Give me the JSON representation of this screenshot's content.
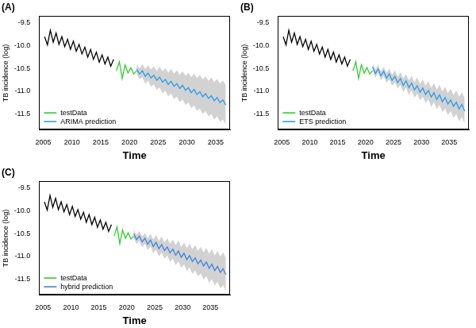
{
  "chart_data": [
    {
      "type": "line",
      "title": "(A)",
      "x_label": "Time",
      "y_label": "TB incidence (log)",
      "xlim": [
        2004.3,
        2037.5
      ],
      "xticks": [
        2005,
        2010,
        2015,
        2020,
        2025,
        2030,
        2035
      ],
      "ylim": [
        -11.85,
        -9.35
      ],
      "yticks": [
        -9.5,
        {
          "value": -10,
          "label": "-10.0"
        },
        -10.5,
        {
          "value": -11,
          "label": "-11.0"
        },
        -11.5
      ],
      "grid": false,
      "legend": "lower left",
      "series": [
        {
          "color": "#000000",
          "x": [
            2005.25,
            2005.75,
            2006.25,
            2006.75,
            2007.25,
            2007.75,
            2008.25,
            2008.75,
            2009.25,
            2009.75,
            2010.25,
            2010.75,
            2011.25,
            2011.75,
            2012.25,
            2012.75,
            2013.25,
            2013.75,
            2014.25,
            2014.75,
            2015.25,
            2015.75,
            2016.25,
            2016.75,
            2017.25
          ],
          "values": [
            -9.8,
            -9.98,
            -9.66,
            -9.92,
            -9.72,
            -9.97,
            -9.8,
            -10.02,
            -9.86,
            -10.08,
            -9.9,
            -10.12,
            -9.97,
            -10.18,
            -10.03,
            -10.25,
            -10.08,
            -10.3,
            -10.14,
            -10.36,
            -10.2,
            -10.4,
            -10.25,
            -10.45,
            -10.3
          ]
        },
        {
          "name": "testData",
          "color": "#33cc33",
          "x": [
            2017.75,
            2018.25,
            2018.75,
            2019.25,
            2019.75,
            2020.25,
            2020.75,
            2021.25
          ],
          "values": [
            -10.55,
            -10.35,
            -10.72,
            -10.42,
            -10.6,
            -10.48,
            -10.62,
            -10.55
          ]
        },
        {
          "name": "ARIMA prediction",
          "color": "#2b9de8",
          "x": [
            2021.25,
            2021.75,
            2022.25,
            2022.75,
            2023.25,
            2023.75,
            2024.25,
            2024.75,
            2025.25,
            2025.75,
            2026.25,
            2026.75,
            2027.25,
            2027.75,
            2028.25,
            2028.75,
            2029.25,
            2029.75,
            2030.25,
            2030.75,
            2031.25,
            2031.75,
            2032.25,
            2032.75,
            2033.25,
            2033.75,
            2034.25,
            2034.75,
            2035.25,
            2035.75,
            2036.25,
            2036.75
          ],
          "values": [
            -10.51,
            -10.62,
            -10.55,
            -10.67,
            -10.6,
            -10.71,
            -10.65,
            -10.76,
            -10.69,
            -10.8,
            -10.74,
            -10.85,
            -10.78,
            -10.89,
            -10.83,
            -10.94,
            -10.87,
            -10.98,
            -10.92,
            -11.03,
            -10.96,
            -11.07,
            -11.01,
            -11.12,
            -11.05,
            -11.16,
            -11.1,
            -11.21,
            -11.14,
            -11.25,
            -11.19,
            -11.3
          ],
          "lower": [
            -10.61,
            -10.74,
            -10.69,
            -10.83,
            -10.77,
            -10.9,
            -10.85,
            -10.97,
            -10.92,
            -11.04,
            -10.99,
            -11.11,
            -11.05,
            -11.17,
            -11.12,
            -11.24,
            -11.18,
            -11.3,
            -11.25,
            -11.37,
            -11.31,
            -11.43,
            -11.38,
            -11.5,
            -11.43,
            -11.55,
            -11.5,
            -11.62,
            -11.55,
            -11.67,
            -11.62,
            -11.73
          ],
          "upper": [
            -10.41,
            -10.5,
            -10.41,
            -10.51,
            -10.43,
            -10.52,
            -10.45,
            -10.55,
            -10.46,
            -10.56,
            -10.49,
            -10.59,
            -10.51,
            -10.61,
            -10.54,
            -10.64,
            -10.56,
            -10.66,
            -10.59,
            -10.69,
            -10.61,
            -10.71,
            -10.64,
            -10.74,
            -10.67,
            -10.77,
            -10.7,
            -10.8,
            -10.73,
            -10.83,
            -10.76,
            -10.87
          ]
        }
      ]
    },
    {
      "type": "line",
      "title": "(B)",
      "x_label": "Time",
      "y_label": "TB incidence (log)",
      "xlim": [
        2004.3,
        2038.5
      ],
      "xticks": [
        2005,
        2010,
        2015,
        2020,
        2025,
        2030,
        2035
      ],
      "ylim": [
        -11.85,
        -9.35
      ],
      "yticks": [
        -9.5,
        {
          "value": -10,
          "label": "-10.0"
        },
        -10.5,
        {
          "value": -11,
          "label": "-11.0"
        },
        -11.5
      ],
      "grid": false,
      "legend": "lower left",
      "series": [
        {
          "color": "#000000",
          "x": [
            2005.25,
            2005.75,
            2006.25,
            2006.75,
            2007.25,
            2007.75,
            2008.25,
            2008.75,
            2009.25,
            2009.75,
            2010.25,
            2010.75,
            2011.25,
            2011.75,
            2012.25,
            2012.75,
            2013.25,
            2013.75,
            2014.25,
            2014.75,
            2015.25,
            2015.75,
            2016.25,
            2016.75,
            2017.25
          ],
          "values": [
            -9.8,
            -9.98,
            -9.66,
            -9.92,
            -9.72,
            -9.97,
            -9.8,
            -10.02,
            -9.86,
            -10.08,
            -9.9,
            -10.12,
            -9.97,
            -10.18,
            -10.03,
            -10.25,
            -10.08,
            -10.3,
            -10.14,
            -10.36,
            -10.2,
            -10.4,
            -10.25,
            -10.45,
            -10.3
          ]
        },
        {
          "name": "testData",
          "color": "#33cc33",
          "x": [
            2017.75,
            2018.25,
            2018.75,
            2019.25,
            2019.75,
            2020.25,
            2020.75,
            2021.25
          ],
          "values": [
            -10.55,
            -10.35,
            -10.72,
            -10.42,
            -10.6,
            -10.48,
            -10.62,
            -10.55
          ]
        },
        {
          "name": "ETS prediction",
          "color": "#2b9de8",
          "x": [
            2021.25,
            2021.75,
            2022.25,
            2022.75,
            2023.25,
            2023.75,
            2024.25,
            2024.75,
            2025.25,
            2025.75,
            2026.25,
            2026.75,
            2027.25,
            2027.75,
            2028.25,
            2028.75,
            2029.25,
            2029.75,
            2030.25,
            2030.75,
            2031.25,
            2031.75,
            2032.25,
            2032.75,
            2033.25,
            2033.75,
            2034.25,
            2034.75,
            2035.25,
            2035.75,
            2036.25,
            2036.75,
            2037.25,
            2037.75
          ],
          "values": [
            -10.46,
            -10.61,
            -10.51,
            -10.66,
            -10.56,
            -10.71,
            -10.62,
            -10.76,
            -10.67,
            -10.81,
            -10.72,
            -10.87,
            -10.77,
            -10.92,
            -10.82,
            -10.97,
            -10.88,
            -11.02,
            -10.93,
            -11.07,
            -10.98,
            -11.13,
            -11.03,
            -11.18,
            -11.08,
            -11.23,
            -11.14,
            -11.28,
            -11.19,
            -11.33,
            -11.24,
            -11.39,
            -11.29,
            -11.44
          ],
          "lower": [
            -10.54,
            -10.7,
            -10.6,
            -10.76,
            -10.66,
            -10.82,
            -10.74,
            -10.88,
            -10.8,
            -10.94,
            -10.86,
            -11.02,
            -10.92,
            -11.08,
            -10.98,
            -11.14,
            -11.06,
            -11.2,
            -11.12,
            -11.26,
            -11.18,
            -11.34,
            -11.24,
            -11.4,
            -11.3,
            -11.46,
            -11.38,
            -11.52,
            -11.44,
            -11.58,
            -11.5,
            -11.66,
            -11.56,
            -11.72
          ],
          "upper": [
            -10.38,
            -10.52,
            -10.42,
            -10.56,
            -10.46,
            -10.6,
            -10.5,
            -10.64,
            -10.54,
            -10.68,
            -10.58,
            -10.72,
            -10.62,
            -10.76,
            -10.66,
            -10.8,
            -10.7,
            -10.84,
            -10.74,
            -10.88,
            -10.78,
            -10.92,
            -10.82,
            -10.96,
            -10.86,
            -11.0,
            -10.9,
            -11.04,
            -10.94,
            -11.08,
            -10.98,
            -11.12,
            -11.02,
            -11.16
          ]
        }
      ]
    },
    {
      "type": "line",
      "title": "(C)",
      "x_label": "Time",
      "y_label": "TB incidence (log)",
      "xlim": [
        2004.3,
        2038.5
      ],
      "xticks": [
        2005,
        2010,
        2015,
        2020,
        2025,
        2030,
        2035
      ],
      "ylim": [
        -11.85,
        -9.35
      ],
      "yticks": [
        -9.5,
        {
          "value": -10,
          "label": "-10.0"
        },
        -10.5,
        {
          "value": -11,
          "label": "-11.0"
        },
        -11.5
      ],
      "grid": false,
      "legend": "lower left",
      "series": [
        {
          "color": "#000000",
          "x": [
            2005.25,
            2005.75,
            2006.25,
            2006.75,
            2007.25,
            2007.75,
            2008.25,
            2008.75,
            2009.25,
            2009.75,
            2010.25,
            2010.75,
            2011.25,
            2011.75,
            2012.25,
            2012.75,
            2013.25,
            2013.75,
            2014.25,
            2014.75,
            2015.25,
            2015.75,
            2016.25,
            2016.75,
            2017.25
          ],
          "values": [
            -9.8,
            -9.98,
            -9.66,
            -9.92,
            -9.72,
            -9.97,
            -9.8,
            -10.02,
            -9.86,
            -10.08,
            -9.9,
            -10.12,
            -9.97,
            -10.18,
            -10.03,
            -10.25,
            -10.08,
            -10.3,
            -10.14,
            -10.36,
            -10.2,
            -10.4,
            -10.25,
            -10.45,
            -10.3
          ]
        },
        {
          "name": "testData",
          "color": "#33cc33",
          "x": [
            2017.75,
            2018.25,
            2018.75,
            2019.25,
            2019.75,
            2020.25,
            2020.75,
            2021.25
          ],
          "values": [
            -10.55,
            -10.35,
            -10.72,
            -10.42,
            -10.6,
            -10.48,
            -10.62,
            -10.55
          ]
        },
        {
          "name": "hybrid prediction",
          "color": "#3c84e0",
          "x": [
            2021.25,
            2021.75,
            2022.25,
            2022.75,
            2023.25,
            2023.75,
            2024.25,
            2024.75,
            2025.25,
            2025.75,
            2026.25,
            2026.75,
            2027.25,
            2027.75,
            2028.25,
            2028.75,
            2029.25,
            2029.75,
            2030.25,
            2030.75,
            2031.25,
            2031.75,
            2032.25,
            2032.75,
            2033.25,
            2033.75,
            2034.25,
            2034.75,
            2035.25,
            2035.75,
            2036.25,
            2036.75,
            2037.25,
            2037.75
          ],
          "values": [
            -10.5,
            -10.63,
            -10.55,
            -10.68,
            -10.6,
            -10.73,
            -10.64,
            -10.78,
            -10.69,
            -10.83,
            -10.74,
            -10.87,
            -10.79,
            -10.92,
            -10.84,
            -10.97,
            -10.88,
            -11.02,
            -10.93,
            -11.07,
            -10.98,
            -11.11,
            -11.03,
            -11.16,
            -11.08,
            -11.21,
            -11.12,
            -11.26,
            -11.17,
            -11.31,
            -11.22,
            -11.35,
            -11.27,
            -11.4
          ],
          "lower": [
            -10.59,
            -10.73,
            -10.66,
            -10.8,
            -10.72,
            -10.86,
            -10.78,
            -10.93,
            -10.85,
            -11.0,
            -10.92,
            -11.05,
            -10.98,
            -11.12,
            -11.05,
            -11.19,
            -11.11,
            -11.25,
            -11.17,
            -11.32,
            -11.24,
            -11.38,
            -11.31,
            -11.44,
            -11.37,
            -11.51,
            -11.43,
            -11.58,
            -11.5,
            -11.64,
            -11.56,
            -11.7,
            -11.63,
            -11.77
          ],
          "upper": [
            -10.41,
            -10.53,
            -10.44,
            -10.56,
            -10.48,
            -10.6,
            -10.5,
            -10.63,
            -10.53,
            -10.66,
            -10.56,
            -10.69,
            -10.6,
            -10.72,
            -10.63,
            -10.75,
            -10.65,
            -10.79,
            -10.69,
            -10.82,
            -10.72,
            -10.84,
            -10.75,
            -10.88,
            -10.79,
            -10.91,
            -10.81,
            -10.94,
            -10.84,
            -10.98,
            -10.88,
            -11.0,
            -10.91,
            -11.03
          ]
        }
      ]
    }
  ]
}
